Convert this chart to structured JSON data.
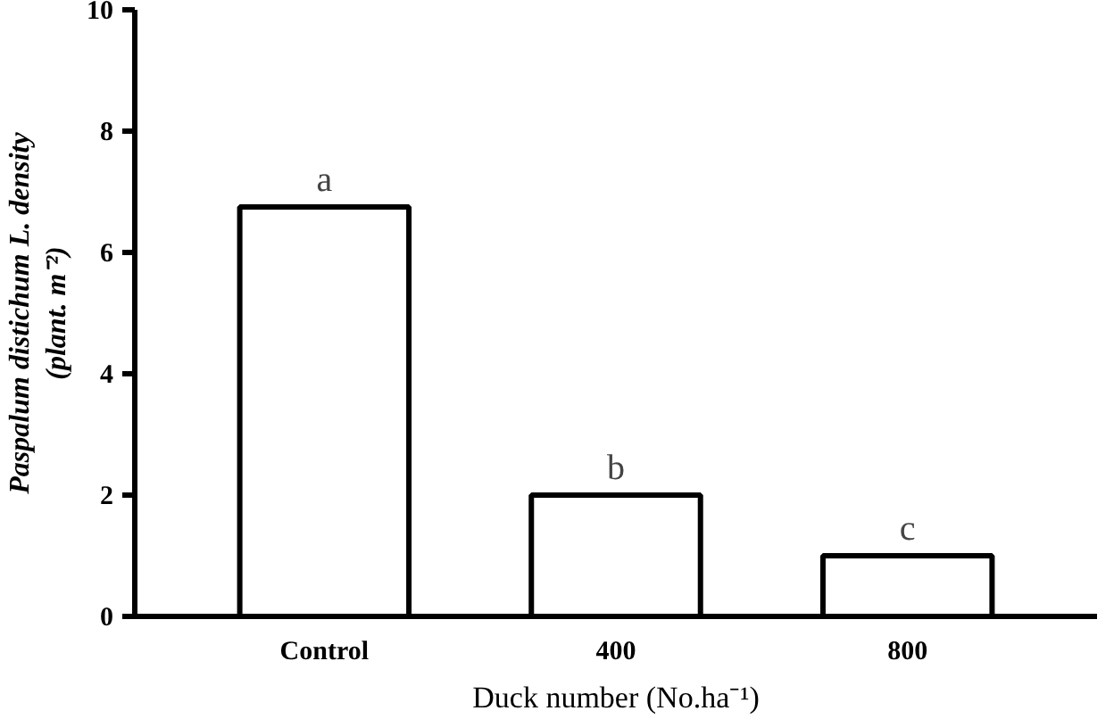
{
  "chart_data": {
    "type": "bar",
    "categories": [
      "Control",
      "400",
      "800"
    ],
    "values": [
      6.75,
      2.0,
      1.0
    ],
    "color": "#ffffff",
    "ylim": [
      0,
      10
    ],
    "yticks": [
      0,
      2,
      4,
      6,
      8,
      10
    ],
    "xlabel": "Duck number (No.ha⁻¹)",
    "ylabel": "Paspalum distichum L. density\n(plant. m⁻²)",
    "annotations": [
      {
        "text": "a",
        "x": "Control",
        "y": 6.75
      },
      {
        "text": "b",
        "x": "400",
        "y": 2.0
      },
      {
        "text": "c",
        "x": "800",
        "y": 1.0
      }
    ],
    "grid": false
  }
}
